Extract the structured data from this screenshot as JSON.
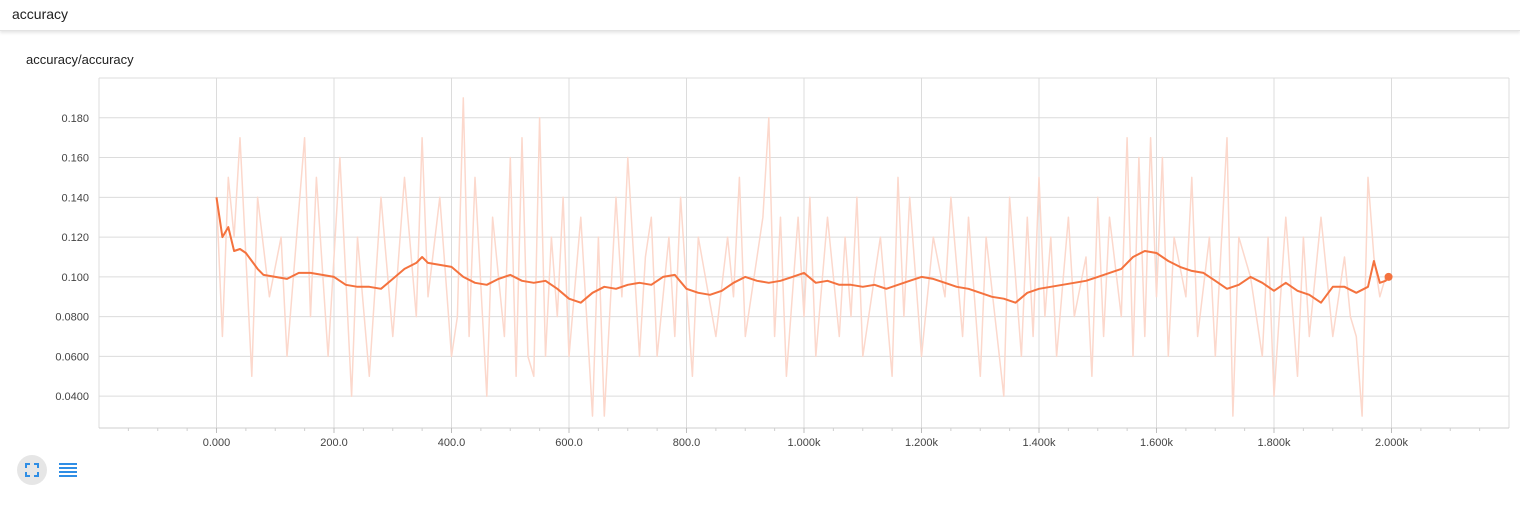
{
  "group": {
    "title": "accuracy"
  },
  "card": {
    "title": "accuracy/accuracy"
  },
  "colors": {
    "smoothed": "#f4723e",
    "raw": "#fcd8cc",
    "grid": "#dcdcdc",
    "icon": "#2f8ee5"
  },
  "icons": {
    "expand": "fullscreen-expand-icon",
    "log": "list-lines-icon"
  },
  "chart_data": {
    "type": "line",
    "title": "",
    "xlabel": "",
    "ylabel": "",
    "xlim": [
      -200,
      2200
    ],
    "ylim": [
      0.024,
      0.2
    ],
    "grid": true,
    "xticks": [
      0,
      200,
      400,
      600,
      800,
      1000,
      1200,
      1400,
      1600,
      1800,
      2000
    ],
    "xtick_labels": [
      "0.000",
      "200.0",
      "400.0",
      "600.0",
      "800.0",
      "1.000k",
      "1.200k",
      "1.400k",
      "1.600k",
      "1.800k",
      "2.000k"
    ],
    "yticks": [
      0.04,
      0.06,
      0.08,
      0.1,
      0.12,
      0.14,
      0.16,
      0.18
    ],
    "ytick_labels": [
      "0.0400",
      "0.0600",
      "0.0800",
      "0.100",
      "0.120",
      "0.140",
      "0.160",
      "0.180"
    ],
    "series": [
      {
        "x": [
          0,
          10,
          20,
          30,
          40,
          60,
          70,
          90,
          110,
          120,
          150,
          160,
          170,
          190,
          210,
          230,
          240,
          260,
          280,
          300,
          320,
          340,
          350,
          360,
          380,
          400,
          410,
          420,
          430,
          440,
          460,
          470,
          490,
          500,
          510,
          520,
          530,
          540,
          550,
          560,
          570,
          580,
          590,
          600,
          620,
          640,
          650,
          660,
          680,
          690,
          700,
          720,
          730,
          740,
          750,
          770,
          780,
          790,
          810,
          820,
          850,
          870,
          880,
          890,
          900,
          930,
          940,
          950,
          960,
          970,
          990,
          1000,
          1010,
          1020,
          1040,
          1060,
          1070,
          1080,
          1090,
          1100,
          1130,
          1150,
          1160,
          1170,
          1180,
          1200,
          1220,
          1240,
          1250,
          1270,
          1280,
          1300,
          1310,
          1340,
          1350,
          1370,
          1380,
          1390,
          1400,
          1410,
          1420,
          1430,
          1450,
          1460,
          1480,
          1490,
          1500,
          1510,
          1520,
          1540,
          1550,
          1560,
          1570,
          1580,
          1590,
          1600,
          1610,
          1620,
          1630,
          1650,
          1660,
          1670,
          1690,
          1700,
          1720,
          1730,
          1740,
          1760,
          1780,
          1790,
          1800,
          1820,
          1840,
          1850,
          1860,
          1880,
          1900,
          1920,
          1930,
          1940,
          1950,
          1960,
          1970,
          1980,
          1990,
          1995
        ],
        "values": [
          0.14,
          0.07,
          0.15,
          0.12,
          0.17,
          0.05,
          0.14,
          0.09,
          0.12,
          0.06,
          0.17,
          0.08,
          0.15,
          0.06,
          0.16,
          0.04,
          0.12,
          0.05,
          0.14,
          0.07,
          0.15,
          0.08,
          0.17,
          0.09,
          0.14,
          0.06,
          0.08,
          0.19,
          0.07,
          0.15,
          0.04,
          0.13,
          0.07,
          0.16,
          0.05,
          0.17,
          0.06,
          0.05,
          0.18,
          0.06,
          0.12,
          0.08,
          0.14,
          0.06,
          0.13,
          0.03,
          0.12,
          0.03,
          0.14,
          0.09,
          0.16,
          0.06,
          0.11,
          0.13,
          0.06,
          0.12,
          0.07,
          0.14,
          0.05,
          0.12,
          0.07,
          0.12,
          0.09,
          0.15,
          0.07,
          0.13,
          0.18,
          0.07,
          0.13,
          0.05,
          0.13,
          0.08,
          0.14,
          0.06,
          0.13,
          0.07,
          0.12,
          0.08,
          0.14,
          0.06,
          0.12,
          0.05,
          0.15,
          0.08,
          0.14,
          0.06,
          0.12,
          0.09,
          0.14,
          0.07,
          0.13,
          0.05,
          0.12,
          0.04,
          0.14,
          0.06,
          0.13,
          0.07,
          0.15,
          0.08,
          0.12,
          0.06,
          0.13,
          0.08,
          0.11,
          0.05,
          0.14,
          0.07,
          0.13,
          0.08,
          0.17,
          0.06,
          0.16,
          0.07,
          0.17,
          0.09,
          0.16,
          0.06,
          0.12,
          0.09,
          0.15,
          0.07,
          0.12,
          0.06,
          0.17,
          0.03,
          0.12,
          0.1,
          0.06,
          0.12,
          0.04,
          0.13,
          0.05,
          0.12,
          0.07,
          0.13,
          0.07,
          0.11,
          0.08,
          0.07,
          0.03,
          0.15,
          0.11,
          0.09,
          0.1,
          0.1
        ]
      },
      {
        "x": [
          0,
          10,
          20,
          30,
          40,
          50,
          60,
          70,
          80,
          100,
          120,
          140,
          160,
          180,
          200,
          220,
          240,
          260,
          280,
          300,
          320,
          340,
          350,
          360,
          380,
          400,
          420,
          440,
          460,
          480,
          500,
          520,
          540,
          560,
          580,
          600,
          620,
          640,
          660,
          680,
          700,
          720,
          740,
          760,
          780,
          800,
          820,
          840,
          860,
          880,
          900,
          920,
          940,
          960,
          980,
          1000,
          1020,
          1040,
          1060,
          1080,
          1100,
          1120,
          1140,
          1160,
          1180,
          1200,
          1220,
          1240,
          1260,
          1280,
          1300,
          1320,
          1340,
          1360,
          1380,
          1400,
          1420,
          1440,
          1460,
          1480,
          1500,
          1520,
          1540,
          1560,
          1580,
          1600,
          1620,
          1640,
          1660,
          1680,
          1700,
          1720,
          1740,
          1760,
          1780,
          1800,
          1820,
          1840,
          1860,
          1880,
          1900,
          1920,
          1940,
          1960,
          1970,
          1980,
          1990,
          1995
        ],
        "values": [
          0.14,
          0.12,
          0.125,
          0.113,
          0.114,
          0.112,
          0.108,
          0.104,
          0.101,
          0.1,
          0.099,
          0.102,
          0.102,
          0.101,
          0.1,
          0.096,
          0.095,
          0.095,
          0.094,
          0.099,
          0.104,
          0.107,
          0.11,
          0.107,
          0.106,
          0.105,
          0.1,
          0.097,
          0.096,
          0.099,
          0.101,
          0.098,
          0.097,
          0.098,
          0.094,
          0.089,
          0.087,
          0.092,
          0.095,
          0.094,
          0.096,
          0.097,
          0.096,
          0.1,
          0.101,
          0.094,
          0.092,
          0.091,
          0.093,
          0.097,
          0.1,
          0.098,
          0.097,
          0.098,
          0.1,
          0.102,
          0.097,
          0.098,
          0.096,
          0.096,
          0.095,
          0.096,
          0.094,
          0.096,
          0.098,
          0.1,
          0.099,
          0.097,
          0.095,
          0.094,
          0.092,
          0.09,
          0.089,
          0.087,
          0.092,
          0.094,
          0.095,
          0.096,
          0.097,
          0.098,
          0.1,
          0.102,
          0.104,
          0.11,
          0.113,
          0.112,
          0.108,
          0.105,
          0.103,
          0.102,
          0.098,
          0.094,
          0.096,
          0.1,
          0.097,
          0.093,
          0.097,
          0.093,
          0.091,
          0.087,
          0.095,
          0.095,
          0.092,
          0.095,
          0.108,
          0.097,
          0.098,
          0.1
        ]
      }
    ]
  }
}
